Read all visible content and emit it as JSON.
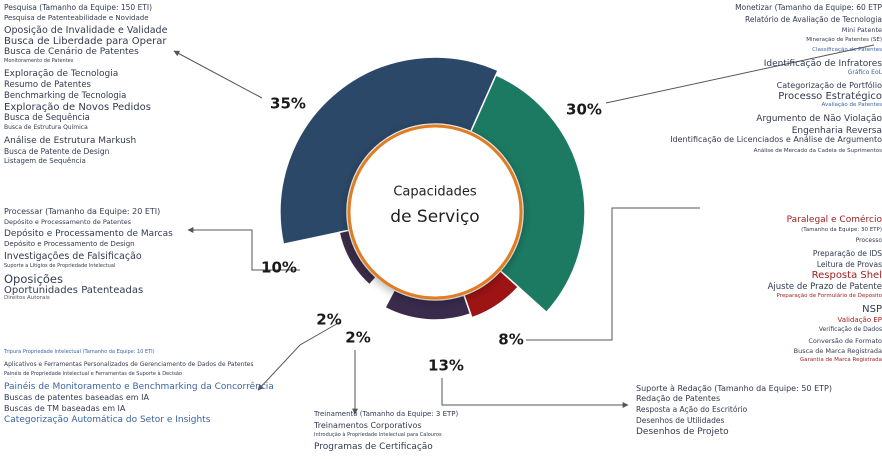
{
  "chart_data": {
    "type": "pie",
    "title": [
      "Capacidades",
      "de Serviço"
    ],
    "categories": [
      "Pesquisa (Tamanho da Equipe: 150 ETI)",
      "Monetizar (Tamanho da Equipe: 60 ETP",
      "Paralegal e Comércio",
      "Suporte à Redação (Tamanho da Equipe: 50 ETP)",
      "Treinamento (Tamanho da Equipe: 3 ETP)",
      "Tripura Propriedade Intelectual (Tamanho da Equipe: 10 ETI)",
      "Processar (Tamanho da Equipe: 20 ETI)"
    ],
    "values": [
      35,
      30,
      8,
      13,
      2,
      2,
      10
    ],
    "value_labels": [
      "35%",
      "30%",
      "8%",
      "13%",
      "2%",
      "2%",
      "10%"
    ],
    "colors": [
      "#2c4868",
      "#1c7a63",
      "#9e1414",
      "#3a2b4c",
      "#1f4e5b",
      "#4a80c2",
      "#3c2c48"
    ],
    "details": [
      [
        "Pesquisa de Patenteabilidade e Novidade",
        "Oposição de Invalidade e Validade",
        "Busca de Liberdade para Operar",
        "Busca de Cenário de Patentes",
        "Monitoramento de Patentes",
        "Exploração de Tecnologia",
        "Resumo de Patentes",
        "Benchmarking de Tecnologia",
        "Exploração de Novos Pedidos",
        "Busca de Sequência",
        "Busca de Estrutura Química",
        "Análise de Estrutura Markush",
        "Busca de Patente de Design",
        "Listagem de Sequência"
      ],
      [
        "Relatório de Avaliação de Tecnologia",
        "Mini Patente",
        "Mineração de Patentes (SE)",
        "Classificação de Patentes",
        "Identificação de Infratores",
        "Gráfico EoL",
        "Categorização de Portfólio",
        "Processo Estratégico",
        "Avaliação de Patentes",
        "Argumento de Não Violação",
        "Engenharia Reversa",
        "Identificação de Licenciados e Análise de Argumento",
        "Análise de Mercado da Cadeia de Suprimentos"
      ],
      [
        "(Tamanho da Equipe: 30 ETP)",
        "Processo",
        "Preparação de IDS",
        "Leitura de Provas",
        "Resposta Shel",
        "Ajuste de Prazo de Patente",
        "Preparação de Formulário de Depósito",
        "NSP",
        "Validação EP",
        "Verificação de Dados",
        "Conversão de Formato",
        "Busca de Marca Registrada",
        "Garantia de Marca Registrada"
      ],
      [
        "Redação de Patentes",
        "Resposta a Ação do Escritório",
        "Desenhos de Utilidades",
        "Desenhos de Projeto"
      ],
      [
        "Treinamentos Corporativos",
        "Introdução à Propriedade Intelectual para Calouros",
        "Programas de Certificação"
      ],
      [
        "Aplicativos e Ferramentas Personalizados de Gerenciamento de Dados de Patentes",
        "Painéis de Propriedade Intelectual e Ferramentas de Suporte à Decisão",
        "Painéis de Monitoramento e Benchmarking da Concorrência",
        "Buscas de patentes baseadas em IA",
        "Buscas de TM baseadas em IA",
        "Categorização Automática do Setor e Insights"
      ],
      [
        "Depósito e Processamento de Patentes",
        "Depósito e Processamento de Marcas",
        "Depósito e Processamento de Design",
        "Investigações de Falsificação",
        "Suporte a Litígios de Propriedade Intelectual",
        "Oposições",
        "Oportunidades Patenteadas",
        "Direitos Autorais"
      ]
    ]
  }
}
